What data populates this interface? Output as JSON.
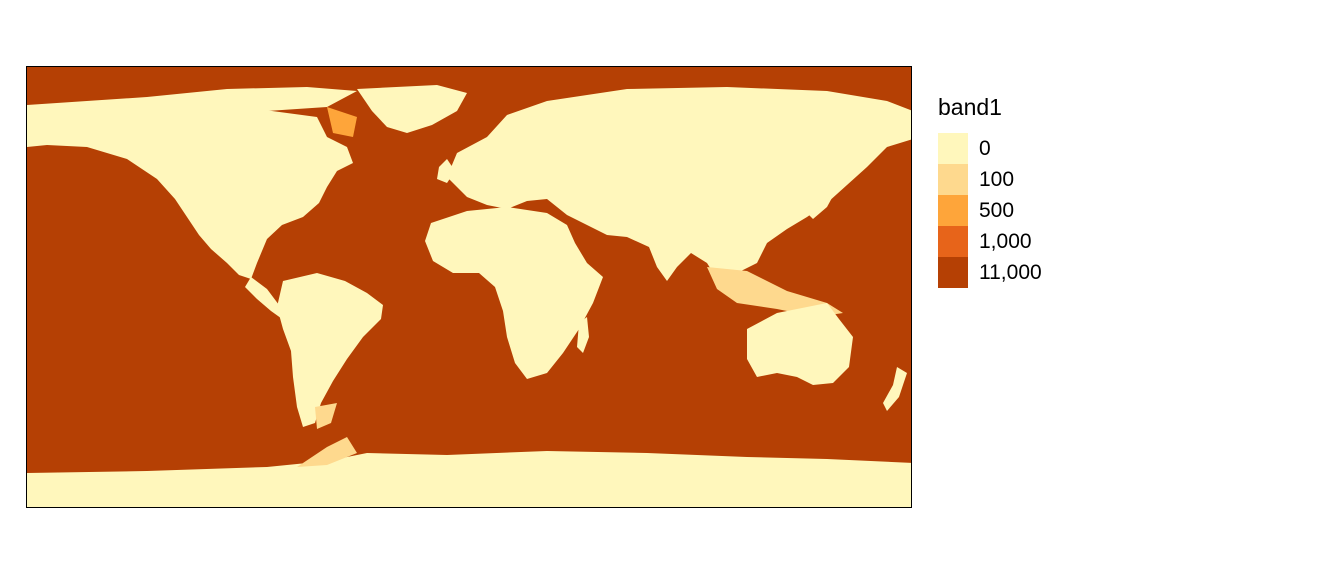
{
  "legend": {
    "title": "band1",
    "items": [
      {
        "label": "0",
        "color": "#FFF7BC"
      },
      {
        "label": "100",
        "color": "#FED98E"
      },
      {
        "label": "500",
        "color": "#FEA53A"
      },
      {
        "label": "1,000",
        "color": "#E7641A"
      },
      {
        "label": "11,000",
        "color": "#B54004"
      }
    ]
  },
  "map": {
    "ocean_color": "#B54004",
    "land_color": "#FFF7BC",
    "shelf_color": "#FED98E",
    "slope_color": "#FEA53A"
  }
}
